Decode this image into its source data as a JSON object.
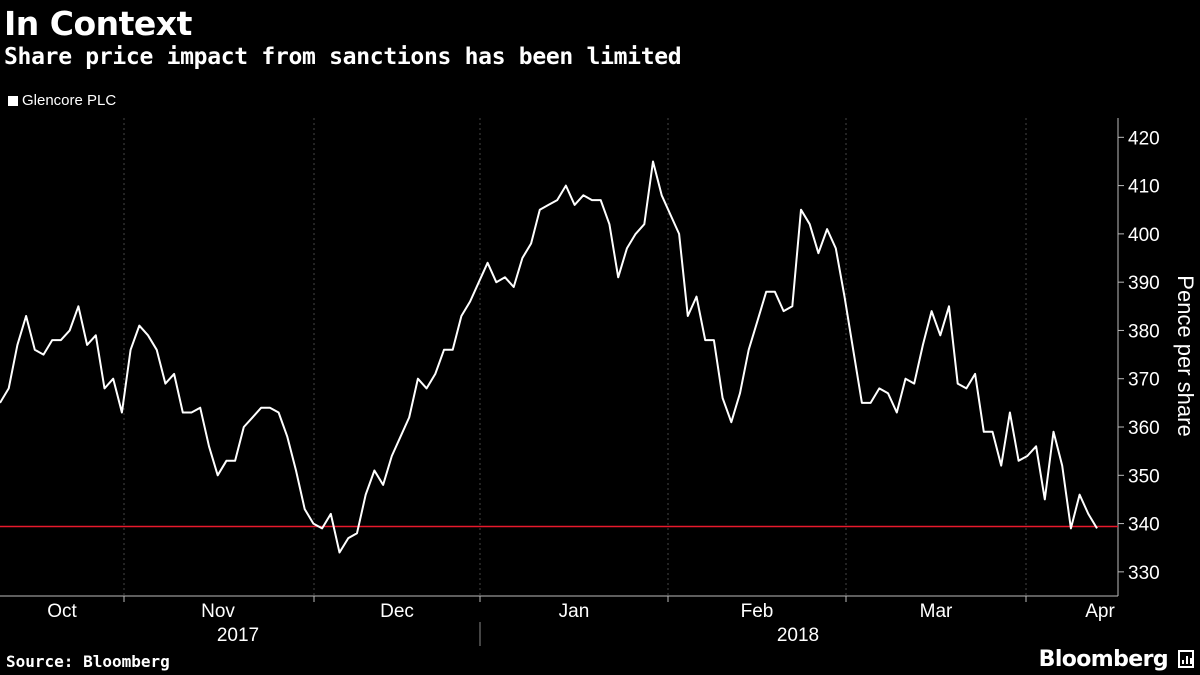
{
  "header": {
    "title": "In Context",
    "subtitle": "Share price impact from sanctions has been limited"
  },
  "legend": {
    "label": "Glencore PLC"
  },
  "footer": {
    "source": "Source: Bloomberg",
    "brand": "Bloomberg"
  },
  "colors": {
    "background": "#000000",
    "line": "#ffffff",
    "reference_line": "#e8192c",
    "grid": "#444444"
  },
  "chart_data": {
    "type": "line",
    "title": "In Context",
    "subtitle": "Share price impact from sanctions has been limited",
    "ylabel": "Pence per share",
    "ylim": [
      325,
      424
    ],
    "yticks": [
      330,
      340,
      350,
      360,
      370,
      380,
      390,
      400,
      410,
      420
    ],
    "y_axis_side": "right",
    "grid": "vertical dashed at month boundaries",
    "legend_position": "top-left",
    "month_labels": [
      "Oct",
      "Nov",
      "Dec",
      "Jan",
      "Feb",
      "Mar",
      "Apr"
    ],
    "year_labels": [
      "2017",
      "2018"
    ],
    "reference_line": {
      "value": 339.4,
      "color": "#e8192c"
    },
    "series": [
      {
        "name": "Glencore PLC",
        "color": "#ffffff",
        "values": [
          365,
          368,
          377,
          383,
          376,
          375,
          378,
          378,
          380,
          385,
          377,
          379,
          368,
          370,
          363,
          376,
          381,
          379,
          376,
          369,
          371,
          363,
          363,
          364,
          356,
          350,
          353,
          353,
          360,
          362,
          364,
          364,
          363,
          358,
          351,
          343,
          340,
          339,
          342,
          334,
          337,
          338,
          346,
          351,
          348,
          354,
          358,
          362,
          370,
          368,
          371,
          376,
          376,
          383,
          386,
          390,
          394,
          390,
          391,
          389,
          395,
          398,
          405,
          406,
          407,
          410,
          406,
          408,
          407,
          407,
          402,
          391,
          397,
          400,
          402,
          415,
          408,
          404,
          400,
          383,
          387,
          378,
          378,
          366,
          361,
          367,
          376,
          382,
          388,
          388,
          384,
          385,
          405,
          402,
          396,
          401,
          397,
          387,
          376,
          365,
          365,
          368,
          367,
          363,
          370,
          369,
          377,
          384,
          379,
          385,
          369,
          368,
          371,
          359,
          359,
          352,
          363,
          353,
          354,
          356,
          345,
          359,
          352,
          339,
          346,
          342,
          339
        ]
      }
    ]
  }
}
